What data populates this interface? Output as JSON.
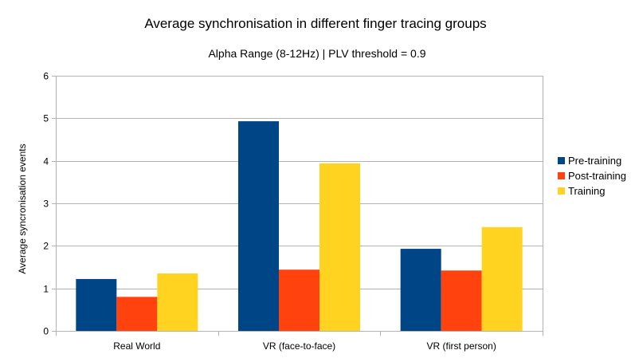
{
  "chart_data": {
    "type": "bar",
    "title": "Average synchronisation in different finger tracing groups",
    "subtitle": "Alpha Range (8-12Hz) | PLV threshold = 0.9",
    "xlabel": "",
    "ylabel": "Average syncronisation events",
    "ylim": [
      0,
      6
    ],
    "yticks": [
      0,
      1,
      2,
      3,
      4,
      5,
      6
    ],
    "grid": true,
    "legend_position": "right",
    "categories": [
      "Real World",
      "VR (face-to-face)",
      "VR (first person)"
    ],
    "series": [
      {
        "name": "Pre-training",
        "color": "#004586",
        "values": [
          1.22,
          4.93,
          1.93
        ]
      },
      {
        "name": "Post-training",
        "color": "#ff420e",
        "values": [
          0.8,
          1.44,
          1.42
        ]
      },
      {
        "name": "Training",
        "color": "#ffd320",
        "values": [
          1.35,
          3.94,
          2.44
        ]
      }
    ]
  }
}
